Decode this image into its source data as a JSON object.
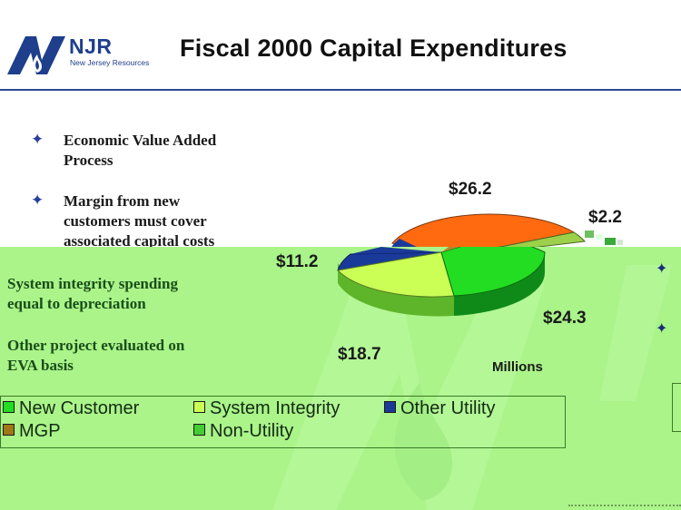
{
  "header": {
    "logo_name": "NJR",
    "logo_sub": "New Jersey Resources",
    "title": "Fiscal 2000 Capital Expenditures"
  },
  "bullets": [
    {
      "lines": [
        "Economic Value Added",
        "Process"
      ]
    },
    {
      "lines": [
        "Margin from new",
        "customers must cover",
        "associated capital costs"
      ]
    }
  ],
  "green_text": [
    {
      "lines": [
        "System integrity spending",
        "equal to depreciation"
      ]
    },
    {
      "lines": [
        "Other project evaluated on",
        "EVA basis"
      ]
    }
  ],
  "chart_data": {
    "type": "pie",
    "units": "Millions",
    "slices": [
      {
        "category": "New Customer",
        "value": 24.3,
        "label": "$24.3",
        "color": "#22dd22"
      },
      {
        "category": "System Integrity",
        "value": 18.7,
        "label": "$18.7",
        "color": "#ccff55"
      },
      {
        "category": "Other Utility",
        "value": 11.2,
        "label": "$11.2",
        "color": "#1a3a9a"
      },
      {
        "category": "MGP",
        "value": 26.2,
        "label": "$26.2",
        "color": "#ff6a10"
      },
      {
        "category": "Non-Utility",
        "value": 2.2,
        "label": "$2.2",
        "color": "#9cd04a"
      }
    ],
    "legend": [
      {
        "label": "New Customer",
        "color": "#22dd22"
      },
      {
        "label": "System Integrity",
        "color": "#ccff55"
      },
      {
        "label": "Other Utility",
        "color": "#1a3a9a"
      },
      {
        "label": "MGP",
        "color": "#a07818"
      },
      {
        "label": "Non-Utility",
        "color": "#44cc33"
      }
    ]
  },
  "colors": {
    "panel_green": "#aaf489",
    "brand_blue": "#1f3f8c"
  },
  "icons": {
    "bullet": "four-point-star-icon",
    "logo": "njr-flame-logo"
  }
}
